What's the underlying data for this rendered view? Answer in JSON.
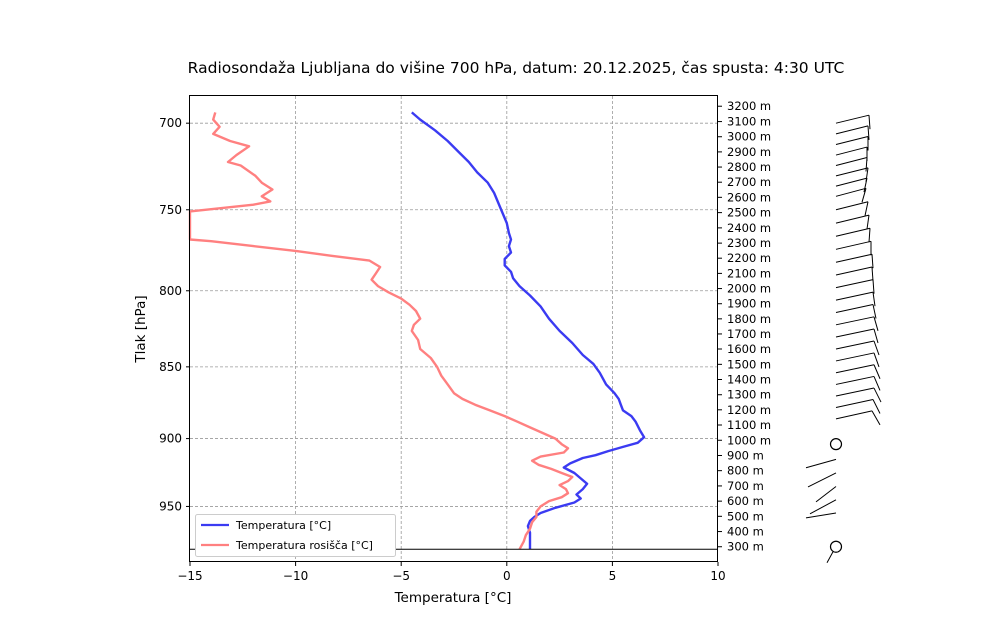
{
  "chart_data": {
    "type": "line",
    "title": "Radiosondaža Ljubljana do višine 700 hPa, datum: 20.12.2025, čas spusta: 4:30 UTC",
    "xlabel": "Temperatura [°C]",
    "ylabel": "Tlak [hPa]",
    "xlim": [
      -15,
      10
    ],
    "xticks": [
      -15,
      -10,
      -5,
      0,
      5,
      10
    ],
    "xtick_labels": [
      "−15",
      "−10",
      "−5",
      "0",
      "5",
      "10"
    ],
    "ylim": [
      993,
      685
    ],
    "yticks": [
      700,
      750,
      800,
      850,
      900,
      950
    ],
    "y_scale": "log (pressure, inverted)",
    "grid": true,
    "legend_position": "lower-left",
    "surface_pressure": 983,
    "altitude_labels": [
      "3200 m",
      "3100 m",
      "3000 m",
      "2900 m",
      "2800 m",
      "2700 m",
      "2600 m",
      "2500 m",
      "2400 m",
      "2300 m",
      "2200 m",
      "2100 m",
      "2000 m",
      "1900 m",
      "1800 m",
      "1700 m",
      "1600 m",
      "1500 m",
      "1400 m",
      "1300 m",
      "1200 m",
      "1100 m",
      "1000 m",
      "900 m",
      "800 m",
      "700 m",
      "600 m",
      "500 m",
      "400 m",
      "300 m"
    ],
    "altitude_pressures": [
      690.6,
      699.1,
      707.6,
      716.2,
      724.9,
      733.7,
      742.6,
      751.7,
      760.9,
      770.2,
      779.5,
      789.0,
      798.6,
      808.3,
      818.1,
      828.0,
      838.0,
      848.3,
      858.6,
      869.1,
      879.6,
      890.3,
      901.2,
      912.2,
      923.3,
      934.6,
      946.0,
      957.5,
      969.2,
      981.0
    ],
    "series": [
      {
        "name": "Temperatura [°C]",
        "color": "#3b3bf2",
        "points": [
          [
            -4.5,
            694
          ],
          [
            -4.1,
            698
          ],
          [
            -3.4,
            704
          ],
          [
            -2.8,
            710
          ],
          [
            -2.3,
            716
          ],
          [
            -1.8,
            722
          ],
          [
            -1.4,
            728
          ],
          [
            -0.9,
            734
          ],
          [
            -0.6,
            740
          ],
          [
            -0.4,
            746
          ],
          [
            -0.2,
            752
          ],
          [
            0.0,
            758
          ],
          [
            0.1,
            764
          ],
          [
            0.2,
            768
          ],
          [
            0.1,
            772
          ],
          [
            0.2,
            776
          ],
          [
            -0.1,
            780
          ],
          [
            -0.1,
            784
          ],
          [
            0.2,
            788
          ],
          [
            0.3,
            792
          ],
          [
            0.6,
            797
          ],
          [
            1.1,
            803
          ],
          [
            1.6,
            810
          ],
          [
            2.0,
            818
          ],
          [
            2.5,
            826
          ],
          [
            3.1,
            834
          ],
          [
            3.6,
            842
          ],
          [
            4.1,
            848
          ],
          [
            4.4,
            854
          ],
          [
            4.7,
            862
          ],
          [
            5.1,
            868
          ],
          [
            5.3,
            872
          ],
          [
            5.4,
            876
          ],
          [
            5.5,
            880
          ],
          [
            5.9,
            884
          ],
          [
            6.1,
            888
          ],
          [
            6.3,
            894
          ],
          [
            6.5,
            899
          ],
          [
            6.2,
            903
          ],
          [
            5.5,
            906
          ],
          [
            4.8,
            909
          ],
          [
            4.2,
            912
          ],
          [
            3.6,
            914
          ],
          [
            3.0,
            918
          ],
          [
            2.7,
            921
          ],
          [
            3.2,
            925
          ],
          [
            3.5,
            929
          ],
          [
            3.8,
            933
          ],
          [
            3.6,
            937
          ],
          [
            3.3,
            941
          ],
          [
            3.5,
            944
          ],
          [
            3.2,
            947
          ],
          [
            2.3,
            951
          ],
          [
            1.6,
            955
          ],
          [
            1.3,
            958
          ],
          [
            1.1,
            961
          ],
          [
            1.0,
            965
          ],
          [
            1.1,
            970
          ],
          [
            1.1,
            975
          ],
          [
            1.1,
            983
          ]
        ]
      },
      {
        "name": "Temperatura rosišča [°C]",
        "color": "#ff8080",
        "points": [
          [
            -13.8,
            694
          ],
          [
            -13.9,
            698
          ],
          [
            -13.6,
            702
          ],
          [
            -13.9,
            706
          ],
          [
            -13.1,
            710
          ],
          [
            -12.2,
            713
          ],
          [
            -12.8,
            718
          ],
          [
            -13.2,
            722
          ],
          [
            -12.6,
            724
          ],
          [
            -11.9,
            730
          ],
          [
            -11.6,
            734
          ],
          [
            -11.1,
            738
          ],
          [
            -11.6,
            742
          ],
          [
            -11.2,
            745
          ],
          [
            -12.0,
            747
          ],
          [
            -15.0,
            751
          ],
          [
            -15.2,
            751
          ],
          [
            -15.0,
            768
          ],
          [
            -14.0,
            769
          ],
          [
            -12.0,
            772
          ],
          [
            -10.0,
            775
          ],
          [
            -8.3,
            778
          ],
          [
            -6.5,
            781
          ],
          [
            -6.0,
            785
          ],
          [
            -6.2,
            789
          ],
          [
            -6.4,
            793
          ],
          [
            -6.1,
            797
          ],
          [
            -5.6,
            801
          ],
          [
            -5.0,
            805
          ],
          [
            -4.6,
            809
          ],
          [
            -4.3,
            813
          ],
          [
            -4.1,
            818
          ],
          [
            -4.4,
            822
          ],
          [
            -4.5,
            826
          ],
          [
            -4.2,
            832
          ],
          [
            -4.1,
            838
          ],
          [
            -3.6,
            844
          ],
          [
            -3.3,
            850
          ],
          [
            -3.1,
            856
          ],
          [
            -2.8,
            862
          ],
          [
            -2.5,
            868
          ],
          [
            -2.1,
            872
          ],
          [
            -1.5,
            876
          ],
          [
            -0.8,
            880
          ],
          [
            -0.1,
            884
          ],
          [
            0.5,
            888
          ],
          [
            1.1,
            892
          ],
          [
            1.7,
            896
          ],
          [
            2.3,
            900
          ],
          [
            2.6,
            904
          ],
          [
            2.9,
            907
          ],
          [
            2.7,
            910
          ],
          [
            1.6,
            913
          ],
          [
            1.2,
            916
          ],
          [
            1.5,
            919
          ],
          [
            2.1,
            922
          ],
          [
            2.6,
            925
          ],
          [
            3.1,
            928
          ],
          [
            2.9,
            931
          ],
          [
            2.5,
            934
          ],
          [
            2.8,
            937
          ],
          [
            2.9,
            940
          ],
          [
            2.6,
            943
          ],
          [
            2.0,
            946
          ],
          [
            1.6,
            950
          ],
          [
            1.4,
            954
          ],
          [
            1.4,
            958
          ],
          [
            1.2,
            962
          ],
          [
            1.1,
            967
          ],
          [
            0.9,
            972
          ],
          [
            0.8,
            977
          ],
          [
            0.6,
            983
          ]
        ]
      }
    ],
    "wind_barbs_note": "wind profile shown as barbs on the right"
  },
  "legend": {
    "t_label": "Temperatura [°C]",
    "td_label": "Temperatura rosišča [°C]"
  }
}
